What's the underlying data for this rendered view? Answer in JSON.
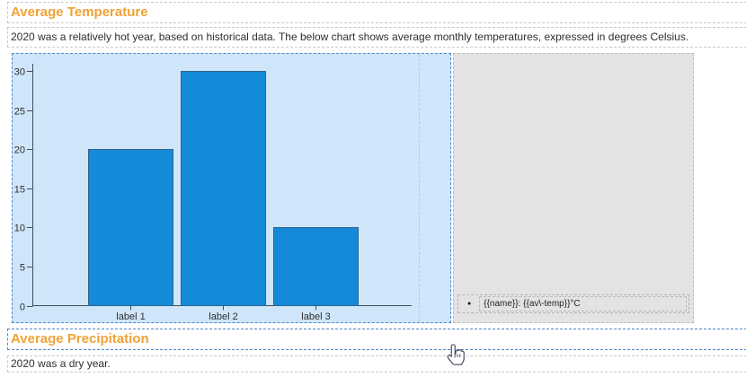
{
  "document": {
    "heading_temperature": "Average Temperature",
    "paragraph_temperature": "2020 was a relatively hot year, based on historical data. The below chart shows average monthly temperatures, expressed in degrees Celsius.",
    "heading_precipitation": "Average Precipitation",
    "paragraph_precipitation": "2020 was a dry year."
  },
  "legend": {
    "bullet": "●",
    "entry": "{{name}}: {{av\\-temp}}°C"
  },
  "chart_data": {
    "type": "bar",
    "title": "",
    "categories": [
      "label 1",
      "label 2",
      "label 3"
    ],
    "values": [
      20,
      30,
      10
    ],
    "xlabel": "",
    "ylabel": "",
    "ylim": [
      0,
      30
    ],
    "yticks": [
      0,
      5,
      10,
      15,
      20,
      25,
      30
    ],
    "grid": false,
    "legend_position": "right",
    "legend_entries": [
      "{{name}}: {{av\\-temp}}°C"
    ],
    "colors": {
      "bar": "#148ad8",
      "bar_border": "#31638c",
      "plot_bg": "#cfe6fa",
      "legend_bg": "#e3e3e3",
      "axis": "#3d4f60",
      "tick_text": "#2e2e2e"
    }
  },
  "colors": {
    "heading": "#f0a236",
    "body_text": "#2f2f2f",
    "selection_dash": "#4f86cc",
    "placeholder_dash": "#c9c9c9"
  }
}
